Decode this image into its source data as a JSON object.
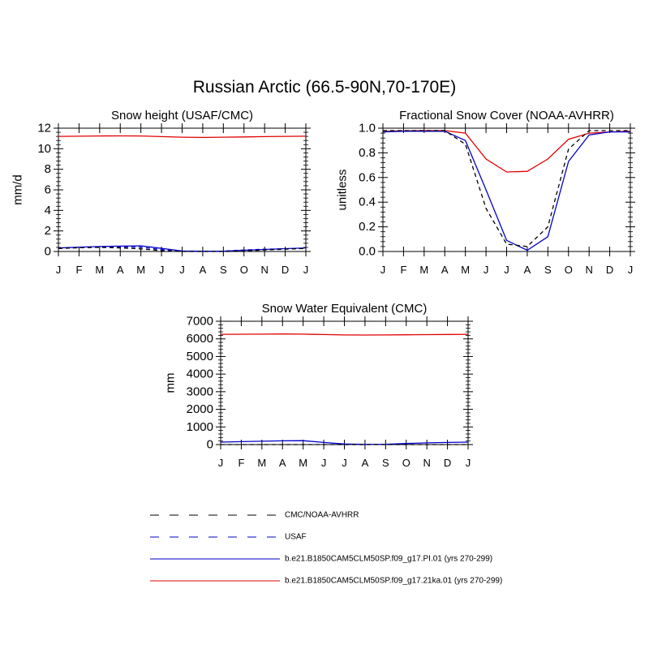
{
  "figure_title": "Russian Arctic (66.5-90N,70-170E)",
  "colors": {
    "model_pi": "#0000cc",
    "model_21ka": "#e00000",
    "obs": "#000000",
    "usaf": "#0000cc"
  },
  "legend": [
    {
      "label": "CMC/NOAA-AVHRR",
      "style": "dashed",
      "color": "#000000"
    },
    {
      "label": "USAF",
      "style": "dashed",
      "color": "#0000cc"
    },
    {
      "label": "b.e21.B1850CAM5CLM50SP.f09_g17.PI.01 (yrs 270-299)",
      "style": "solid",
      "color": "#0000cc"
    },
    {
      "label": "b.e21.B1850CAM5CLM50SP.f09_g17.21ka.01 (yrs 270-299)",
      "style": "solid",
      "color": "#e00000"
    }
  ],
  "chart_data": [
    {
      "type": "line",
      "title": "Snow height (USAF/CMC)",
      "ylabel": "mm/d",
      "xlabel": "",
      "categories": [
        "J",
        "F",
        "M",
        "A",
        "M",
        "J",
        "J",
        "A",
        "S",
        "O",
        "N",
        "D",
        "J"
      ],
      "ylim": [
        0,
        12
      ],
      "yticks": [
        0,
        2,
        4,
        6,
        8,
        10,
        12
      ],
      "yticklabels": [
        "0",
        "2",
        "4",
        "6",
        "8",
        "10",
        "12"
      ],
      "grid": false,
      "series": [
        {
          "name": "b.e21.B1850CAM5CLM50SP.f09_g17.21ka.01 (yrs 270-299)",
          "style": "solid",
          "color": "#e00000",
          "values": [
            11.2,
            11.22,
            11.24,
            11.25,
            11.24,
            11.18,
            11.12,
            11.1,
            11.12,
            11.15,
            11.18,
            11.2,
            11.22
          ]
        },
        {
          "name": "b.e21.B1850CAM5CLM50SP.f09_g17.PI.01 (yrs 270-299)",
          "style": "solid",
          "color": "#0000cc",
          "values": [
            0.35,
            0.42,
            0.48,
            0.52,
            0.55,
            0.3,
            0.05,
            0.02,
            0.03,
            0.12,
            0.2,
            0.28,
            0.35
          ]
        },
        {
          "name": "USAF",
          "style": "dashed",
          "color": "#0000cc",
          "values": [
            0.3,
            0.38,
            0.45,
            0.46,
            0.42,
            0.18,
            0.03,
            0.01,
            0.03,
            0.15,
            0.22,
            0.26,
            0.3
          ]
        },
        {
          "name": "CMC/NOAA-AVHRR",
          "style": "dashed",
          "color": "#000000",
          "values": [
            0.3,
            0.36,
            0.4,
            0.35,
            0.25,
            0.08,
            0.0,
            0.0,
            0.0,
            0.05,
            0.15,
            0.22,
            0.3
          ]
        }
      ]
    },
    {
      "type": "line",
      "title": "Fractional Snow Cover (NOAA-AVHRR)",
      "ylabel": "unitless",
      "xlabel": "",
      "categories": [
        "J",
        "F",
        "M",
        "A",
        "M",
        "J",
        "J",
        "A",
        "S",
        "O",
        "N",
        "D",
        "J"
      ],
      "ylim": [
        0,
        1
      ],
      "yticks": [
        0,
        0.2,
        0.4,
        0.6,
        0.8,
        1.0
      ],
      "yticklabels": [
        "0.0",
        "0.2",
        "0.4",
        "0.6",
        "0.8",
        "1.0"
      ],
      "grid": false,
      "series": [
        {
          "name": "b.e21.B1850CAM5CLM50SP.f09_g17.21ka.01 (yrs 270-299)",
          "style": "solid",
          "color": "#e00000",
          "values": [
            0.975,
            0.978,
            0.98,
            0.98,
            0.96,
            0.75,
            0.645,
            0.65,
            0.75,
            0.91,
            0.96,
            0.97,
            0.975
          ]
        },
        {
          "name": "b.e21.B1850CAM5CLM50SP.f09_g17.PI.01 (yrs 270-299)",
          "style": "solid",
          "color": "#0000cc",
          "values": [
            0.97,
            0.975,
            0.975,
            0.975,
            0.9,
            0.5,
            0.09,
            0.01,
            0.12,
            0.73,
            0.945,
            0.97,
            0.97
          ]
        },
        {
          "name": "CMC/NOAA-AVHRR",
          "style": "dashed",
          "color": "#000000",
          "values": [
            0.98,
            0.98,
            0.98,
            0.98,
            0.87,
            0.35,
            0.06,
            0.04,
            0.2,
            0.83,
            0.98,
            0.98,
            0.98
          ]
        }
      ]
    },
    {
      "type": "line",
      "title": "Snow Water Equivalent (CMC)",
      "ylabel": "mm",
      "xlabel": "",
      "categories": [
        "J",
        "F",
        "M",
        "A",
        "M",
        "J",
        "J",
        "A",
        "S",
        "O",
        "N",
        "D",
        "J"
      ],
      "ylim": [
        0,
        7000
      ],
      "yticks": [
        0,
        1000,
        2000,
        3000,
        4000,
        5000,
        6000,
        7000
      ],
      "yticklabels": [
        "0",
        "1000",
        "2000",
        "3000",
        "4000",
        "5000",
        "6000",
        "7000"
      ],
      "grid": false,
      "series": [
        {
          "name": "b.e21.B1850CAM5CLM50SP.f09_g17.21ka.01 (yrs 270-299)",
          "style": "solid",
          "color": "#e00000",
          "values": [
            6260,
            6265,
            6270,
            6275,
            6270,
            6245,
            6220,
            6215,
            6220,
            6230,
            6240,
            6250,
            6260
          ]
        },
        {
          "name": "b.e21.B1850CAM5CLM50SP.f09_g17.PI.01 (yrs 270-299)",
          "style": "solid",
          "color": "#0000cc",
          "values": [
            140,
            165,
            190,
            210,
            220,
            120,
            30,
            10,
            15,
            60,
            95,
            120,
            140
          ]
        },
        {
          "name": "CMC/NOAA-AVHRR",
          "style": "dashed",
          "color": "#000000",
          "values": [
            0,
            0,
            0,
            0,
            0,
            0,
            0,
            0,
            0,
            0,
            0,
            0,
            0
          ]
        }
      ]
    }
  ]
}
